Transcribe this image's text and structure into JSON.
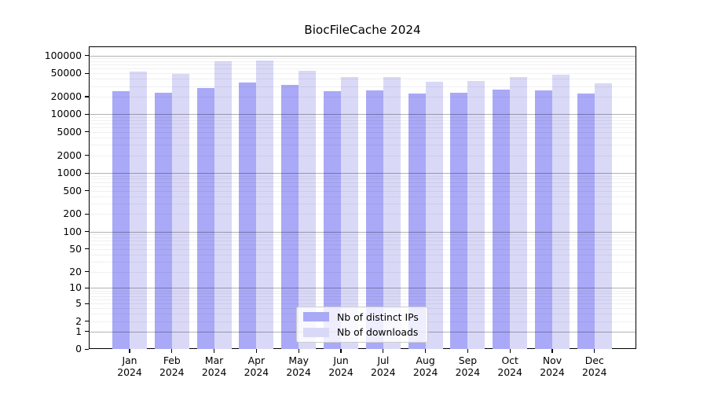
{
  "title": "BiocFileCache 2024",
  "colors": {
    "bar_ips": "#a9a9f7",
    "bar_downloads": "#d9d9f7",
    "grid_major": "rgba(0,0,0,0.30)",
    "grid_minor": "rgba(0,0,0,0.06)",
    "axis": "#000000",
    "legend_border": "#cccccc",
    "legend_background": "rgba(255,255,255,0.8)"
  },
  "legend": {
    "position": "lower center",
    "items": [
      {
        "label": "Nb of distinct IPs",
        "color_key": "bar_ips"
      },
      {
        "label": "Nb of downloads",
        "color_key": "bar_downloads"
      }
    ]
  },
  "chart_data": {
    "type": "bar",
    "title": "BiocFileCache 2024",
    "categories": [
      "Jan",
      "Feb",
      "Mar",
      "Apr",
      "May",
      "Jun",
      "Jul",
      "Aug",
      "Sep",
      "Oct",
      "Nov",
      "Dec"
    ],
    "year": "2024",
    "series": [
      {
        "name": "Nb of distinct IPs",
        "values": [
          25000,
          23100,
          28300,
          35200,
          31400,
          25000,
          25900,
          22800,
          23300,
          26300,
          25400,
          22400
        ]
      },
      {
        "name": "Nb of downloads",
        "values": [
          53200,
          49000,
          79300,
          81900,
          54500,
          42500,
          42500,
          36300,
          36700,
          43500,
          46600,
          33700
        ]
      }
    ],
    "xlabel": "",
    "ylabel": "",
    "yscale": "log1p",
    "yticks": [
      100000,
      50000,
      20000,
      10000,
      5000,
      2000,
      1000,
      500,
      200,
      100,
      50,
      20,
      10,
      5,
      2,
      1,
      0
    ],
    "ylim": [
      0,
      143000
    ],
    "grid": true,
    "legend_position": "lower center"
  }
}
